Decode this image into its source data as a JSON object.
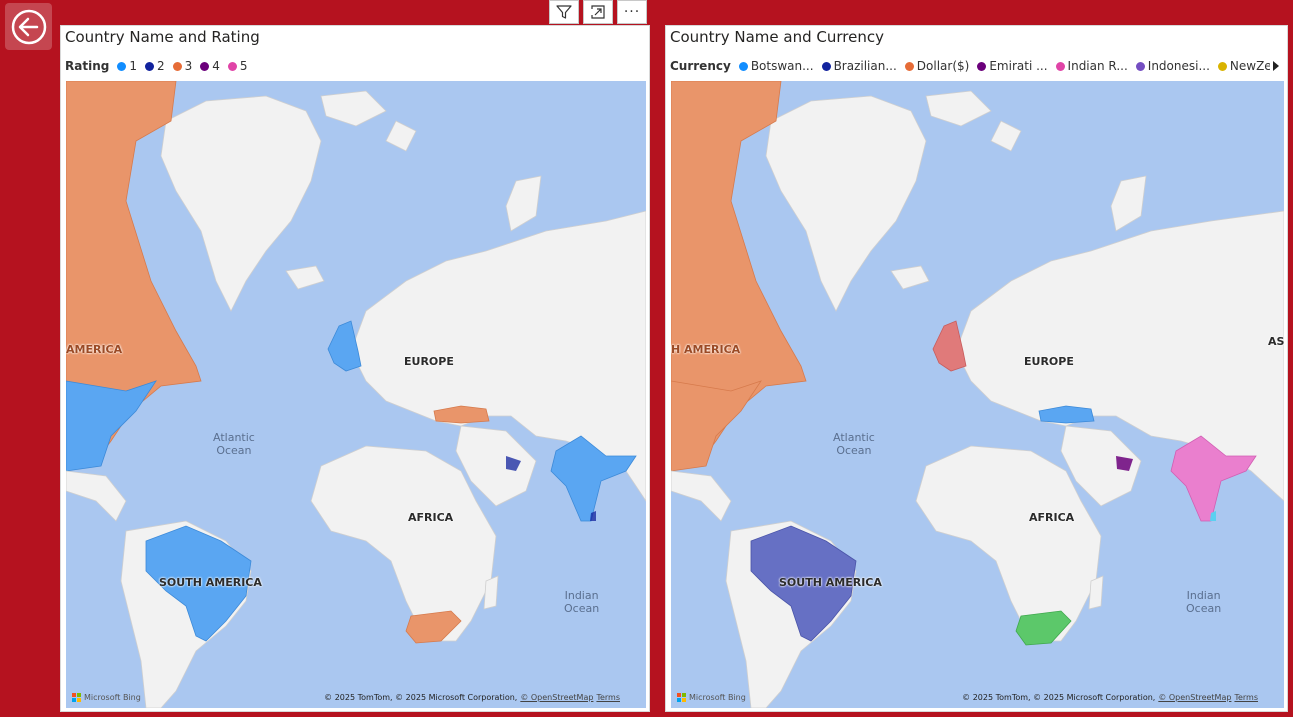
{
  "back_button": {
    "icon": "arrow-left-circle-icon"
  },
  "toolbar": {
    "icons": [
      "filter-icon",
      "focus-mode-icon",
      "more-options-icon"
    ],
    "more_label": "···"
  },
  "colors": {
    "background": "#b5121f",
    "ocean": "#aac7f0",
    "land": "#f2f2f2",
    "rating_1": "#118dff",
    "rating_2": "#12239e",
    "rating_3": "#e66c37",
    "rating_4": "#6b007b",
    "rating_5": "#e044a7"
  },
  "left_panel": {
    "title": "Country Name and Rating",
    "legend_title": "Rating",
    "legend": [
      {
        "label": "1",
        "color": "#118dff"
      },
      {
        "label": "2",
        "color": "#12239e"
      },
      {
        "label": "3",
        "color": "#e66c37"
      },
      {
        "label": "4",
        "color": "#6b007b"
      },
      {
        "label": "5",
        "color": "#e044a7"
      }
    ],
    "map_labels": {
      "north_america": "AMERICA",
      "europe": "EUROPE",
      "africa": "AFRICA",
      "south_america": "SOUTH AMERICA",
      "atlantic_1": "Atlantic",
      "atlantic_2": "Ocean",
      "indian_1": "Indian",
      "indian_2": "Ocean"
    }
  },
  "right_panel": {
    "title": "Country Name and Currency",
    "legend_title": "Currency",
    "legend": [
      {
        "label": "Botswan...",
        "color": "#118dff"
      },
      {
        "label": "Brazilian...",
        "color": "#12239e"
      },
      {
        "label": "Dollar($)",
        "color": "#e66c37"
      },
      {
        "label": "Emirati ...",
        "color": "#6b007b"
      },
      {
        "label": "Indian R...",
        "color": "#e044a7"
      },
      {
        "label": "Indonesi...",
        "color": "#744ec2"
      },
      {
        "label": "NewZea...",
        "color": "#d9b300"
      }
    ],
    "map_labels": {
      "north_america": "H AMERICA",
      "europe": "EUROPE",
      "africa": "AFRICA",
      "south_america": "SOUTH AMERICA",
      "asia": "AS",
      "atlantic_1": "Atlantic",
      "atlantic_2": "Ocean",
      "indian_1": "Indian",
      "indian_2": "Ocean"
    }
  },
  "map_footer": {
    "bing": "Microsoft Bing",
    "attribution": "© 2025 TomTom, © 2025 Microsoft Corporation,",
    "osm": "© OpenStreetMap",
    "terms": "Terms"
  }
}
